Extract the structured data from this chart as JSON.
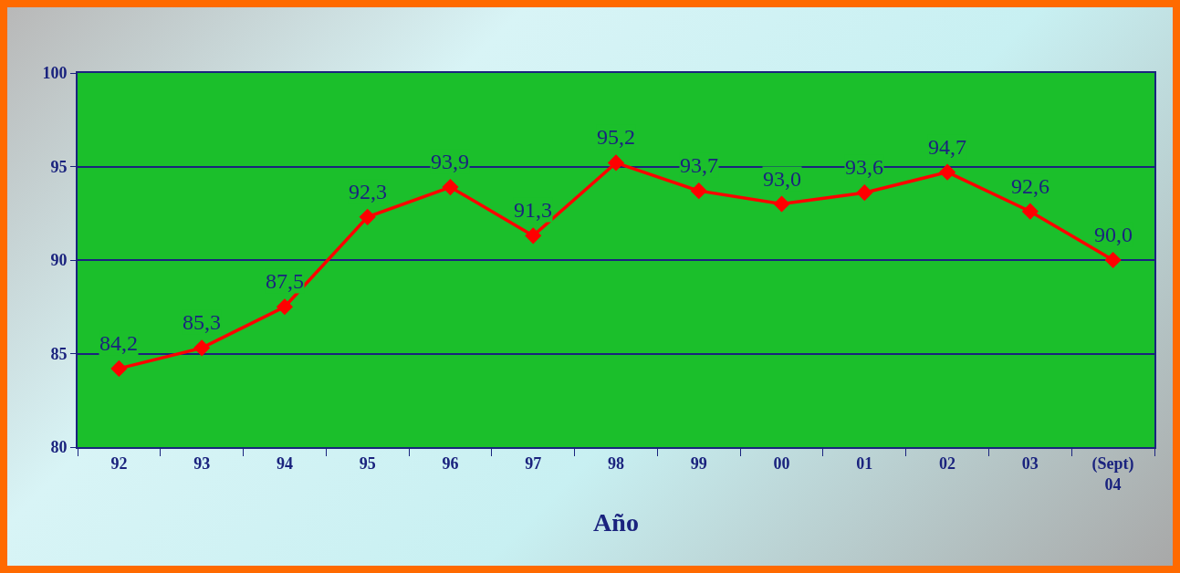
{
  "chart_data": {
    "type": "line",
    "xlabel": "Año",
    "categories": [
      "92",
      "93",
      "94",
      "95",
      "96",
      "97",
      "98",
      "99",
      "00",
      "01",
      "02",
      "03",
      "(Sept)\n04"
    ],
    "series": [
      {
        "color": "#ff0000",
        "values": [
          84.2,
          85.3,
          87.5,
          92.3,
          93.9,
          91.3,
          95.2,
          93.7,
          93.0,
          93.6,
          94.7,
          92.6,
          90.0
        ],
        "value_labels": [
          "84,2",
          "85,3",
          "87,5",
          "92,3",
          "93,9",
          "91,3",
          "95,2",
          "93,7",
          "93,0",
          "93,6",
          "94,7",
          "92,6",
          "90,0"
        ]
      }
    ],
    "ylim": [
      80,
      100
    ],
    "yticks": [
      80,
      85,
      90,
      95,
      100
    ],
    "grid": "y",
    "marker": "diamond",
    "line_style": "solid"
  }
}
